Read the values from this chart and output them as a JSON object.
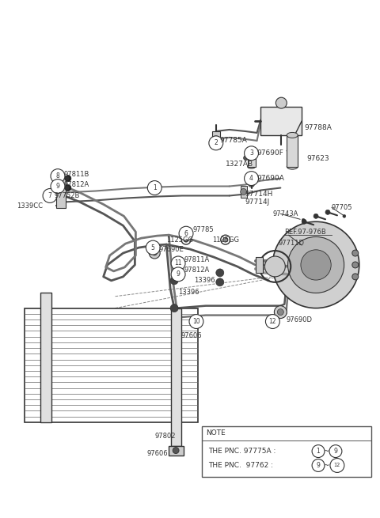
{
  "bg_color": "#ffffff",
  "line_color": "#333333",
  "text_color": "#333333",
  "note_text_line1": "THE PNC. 97775A :",
  "note_text_line2": "THE PNC.  97762 :",
  "note_circle1_start": "1",
  "note_circle1_end": "9",
  "note_circle2_start": "9",
  "note_circle2_end": "12"
}
